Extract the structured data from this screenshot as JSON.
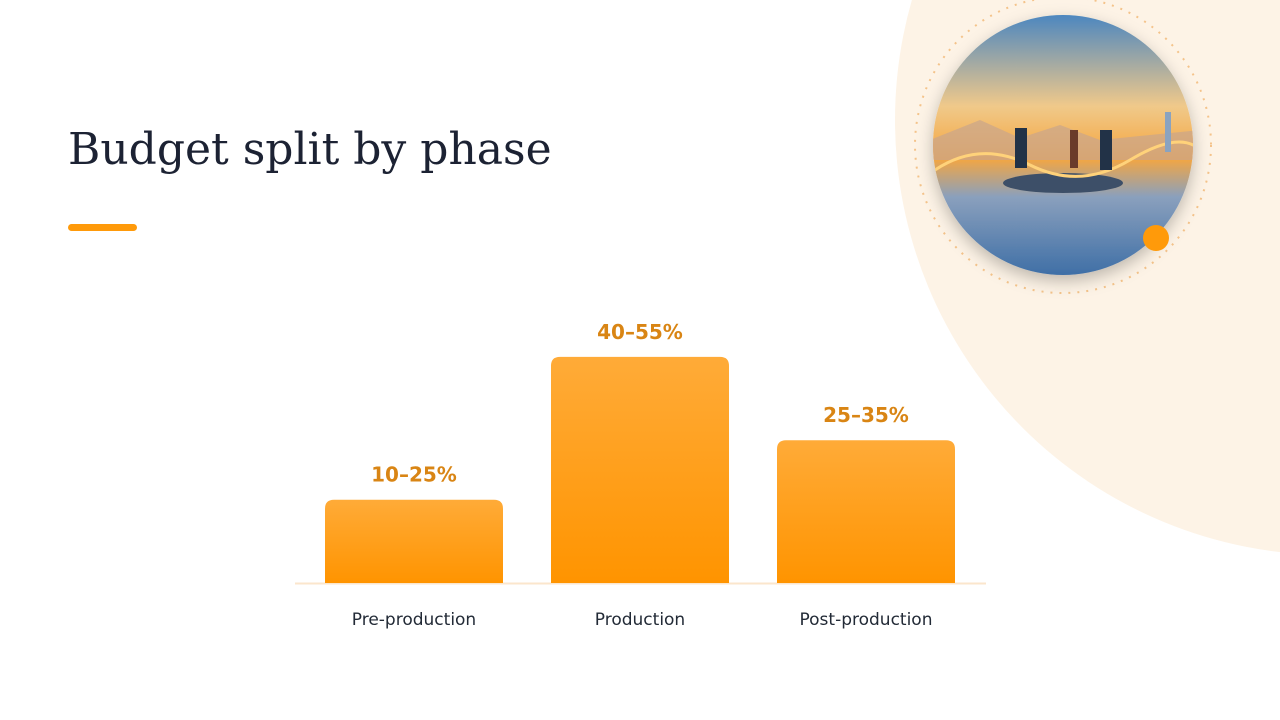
{
  "chart_data": {
    "type": "bar",
    "title": "Budget split by phase",
    "categories": [
      "Pre-production",
      "Production",
      "Post-production"
    ],
    "values": [
      17.5,
      47.5,
      30
    ],
    "value_labels": [
      "10–25%",
      "40–55%",
      "25–35%"
    ],
    "color": "#ff9a0a"
  }
}
